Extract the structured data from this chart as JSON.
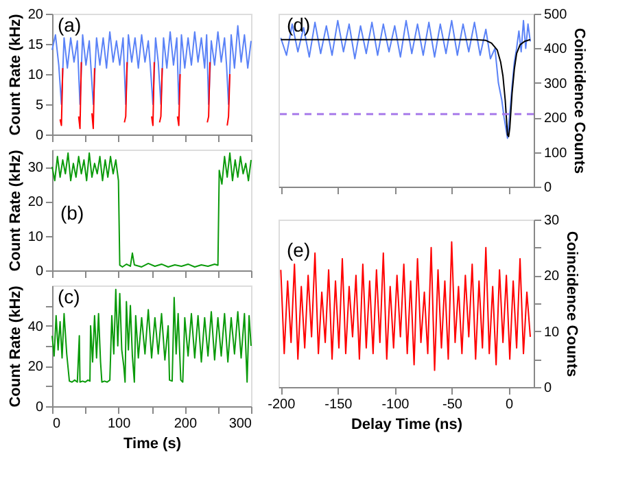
{
  "chart_data": [
    {
      "type": "line",
      "annotations": [
        "(a)"
      ],
      "ylabel": "Count Rate (kHz)",
      "tick_labels": "y",
      "xlim": [
        0,
        300
      ],
      "xticks": [
        0,
        {
          "value": 50,
          "label": null
        },
        100,
        {
          "value": 150,
          "label": null
        },
        200,
        {
          "value": 250,
          "label": null
        },
        300
      ],
      "ylim": [
        0,
        20
      ],
      "yticks": [
        0,
        5,
        10,
        15,
        20
      ],
      "series": [
        {
          "color": "#5a82f7",
          "x": [
            0,
            5,
            10,
            14,
            18,
            23,
            28,
            33,
            38,
            42,
            46,
            51,
            56,
            62,
            67,
            72,
            77,
            82,
            87,
            92,
            97,
            102,
            107,
            111,
            115,
            120,
            125,
            130,
            135,
            140,
            145,
            148,
            152,
            156,
            160,
            164,
            168,
            173,
            178,
            183,
            188,
            191,
            195,
            200,
            205,
            210,
            215,
            220,
            225,
            230,
            233,
            236,
            240,
            245,
            250,
            255,
            260,
            263,
            266,
            270,
            275,
            280,
            285,
            290,
            295,
            300
          ],
          "values": [
            14,
            16.5,
            11.5,
            5,
            16,
            11,
            16,
            12,
            15.5,
            5,
            16.5,
            11.5,
            15.5,
            5,
            16,
            11.5,
            16,
            11,
            17,
            12,
            15.5,
            11.5,
            16,
            5,
            16.5,
            12,
            16,
            11,
            16.5,
            12,
            15.5,
            11.5,
            5,
            16,
            12,
            5,
            16,
            11,
            17,
            11.5,
            16,
            5,
            16.5,
            11,
            16,
            11.5,
            17,
            12,
            16,
            11,
            16.5,
            5,
            15.5,
            11.5,
            17,
            12,
            16,
            11.5,
            5,
            16.5,
            11,
            18,
            12,
            16.5,
            11,
            15.5
          ]
        },
        {
          "color": "#ff0000",
          "x": [
            12,
            14,
            16,
            17,
            40,
            42,
            44,
            45,
            60,
            62,
            64,
            65,
            109,
            111,
            113,
            114,
            150,
            152,
            154,
            155,
            162,
            164,
            166,
            167,
            189,
            191,
            193,
            194,
            234,
            236,
            238,
            239,
            264,
            266,
            268
          ],
          "values": [
            2.5,
            1.5,
            11,
            null,
            3,
            1,
            12,
            null,
            3.5,
            1,
            11,
            null,
            2,
            3,
            12,
            null,
            3,
            1.5,
            12,
            null,
            2,
            3,
            11,
            null,
            3,
            1.5,
            10,
            null,
            2,
            3,
            12,
            null,
            1.5,
            3,
            10
          ]
        }
      ]
    },
    {
      "type": "line",
      "annotations": [
        "(b)"
      ],
      "ylabel": "Count Rate (kHz)",
      "tick_labels": "y",
      "xlim": [
        0,
        300
      ],
      "xticks": [
        0,
        {
          "value": 50,
          "label": null
        },
        100,
        {
          "value": 150,
          "label": null
        },
        200,
        {
          "value": 250,
          "label": null
        },
        300
      ],
      "ylim": [
        0,
        35
      ],
      "yticks": [
        0,
        10,
        20,
        30
      ],
      "series": [
        {
          "color": "#0a9a0a",
          "x": [
            0,
            4,
            8,
            12,
            16,
            20,
            24,
            28,
            32,
            36,
            40,
            44,
            48,
            52,
            56,
            60,
            64,
            68,
            72,
            76,
            80,
            84,
            88,
            92,
            96,
            100,
            102,
            106,
            112,
            118,
            121,
            124,
            135,
            145,
            155,
            165,
            175,
            185,
            195,
            205,
            215,
            225,
            235,
            245,
            250,
            252,
            256,
            260,
            264,
            268,
            272,
            276,
            280,
            284,
            288,
            292,
            296,
            300
          ],
          "values": [
            30,
            26,
            33,
            27,
            32,
            28,
            34,
            26,
            31,
            27,
            33,
            28,
            32,
            26,
            34,
            27,
            31,
            28,
            33,
            26,
            32,
            27,
            33,
            28,
            32,
            26,
            1.5,
            1,
            1.8,
            1.2,
            5,
            1.6,
            1,
            2,
            1.2,
            1.8,
            1,
            1.6,
            1.2,
            1.8,
            1,
            1.6,
            1.2,
            1.8,
            1.5,
            29,
            25,
            33,
            27,
            34,
            26,
            32,
            27,
            33,
            28,
            31,
            26,
            32
          ]
        }
      ]
    },
    {
      "type": "line",
      "annotations": [
        "(c)"
      ],
      "xlabel": "Time (s)",
      "ylabel": "Count Rate (kHz)",
      "xlim": [
        0,
        300
      ],
      "xticks": [
        0,
        {
          "value": 50,
          "label": null
        },
        100,
        {
          "value": 150,
          "label": null
        },
        200,
        {
          "value": 250,
          "label": null
        },
        300
      ],
      "ylim": [
        0,
        60
      ],
      "yticks": [
        0,
        {
          "value": 10,
          "label": null
        },
        20,
        {
          "value": 30,
          "label": null
        },
        40,
        {
          "value": 50,
          "label": null
        }
      ],
      "series": [
        {
          "color": "#0a9a0a",
          "x": [
            0,
            3,
            6,
            9,
            12,
            15,
            18,
            22,
            26,
            30,
            34,
            38,
            41,
            42,
            46,
            50,
            54,
            57,
            58,
            61,
            64,
            67,
            70,
            73,
            75,
            79,
            83,
            87,
            90,
            93,
            96,
            99,
            102,
            105,
            108,
            110,
            112,
            115,
            118,
            121,
            124,
            126,
            130,
            135,
            140,
            145,
            150,
            155,
            160,
            165,
            170,
            175,
            177,
            181,
            184,
            187,
            190,
            194,
            197,
            200,
            205,
            210,
            215,
            220,
            225,
            230,
            235,
            240,
            245,
            250,
            255,
            260,
            265,
            270,
            275,
            280,
            285,
            290,
            294,
            297,
            300
          ],
          "values": [
            35,
            25,
            45,
            28,
            42,
            24,
            46,
            26,
            12.5,
            12,
            13,
            12,
            35,
            12,
            12.5,
            12,
            13,
            12.5,
            40,
            22,
            45,
            24,
            46,
            22,
            12,
            12.5,
            12,
            13,
            45,
            26,
            58,
            30,
            56,
            28,
            20,
            12,
            52,
            28,
            50,
            25,
            12,
            45,
            24,
            44,
            26,
            48,
            24,
            44,
            26,
            46,
            23,
            40,
            13,
            12.5,
            54,
            26,
            46,
            13,
            12,
            44,
            25,
            46,
            24,
            45,
            22,
            44,
            25,
            47,
            23,
            44,
            25,
            46,
            22,
            44,
            26,
            47,
            24,
            46,
            12,
            45,
            30
          ]
        }
      ]
    },
    {
      "type": "line",
      "annotations": [
        "(d)"
      ],
      "y2label": "Coincidence Counts",
      "tick_labels": "y",
      "xlim": [
        -202,
        22
      ],
      "xticks": [
        -200,
        -150,
        -100,
        -50,
        0
      ],
      "y2lim": [
        0,
        500
      ],
      "y2ticks": [
        0,
        100,
        200,
        300,
        400,
        500
      ],
      "ref_lines": [
        {
          "axis": "y2",
          "value": 210,
          "color": "#a87bea",
          "line_style": "dashed"
        }
      ],
      "series": [
        {
          "color": "#5a82f7",
          "axis": "y2",
          "x": [
            -200,
            -195,
            -190,
            -185,
            -180,
            -175,
            -170,
            -165,
            -160,
            -155,
            -150,
            -145,
            -140,
            -135,
            -130,
            -125,
            -120,
            -115,
            -110,
            -105,
            -100,
            -95,
            -90,
            -85,
            -80,
            -75,
            -70,
            -65,
            -60,
            -55,
            -50,
            -45,
            -40,
            -35,
            -30,
            -25,
            -20,
            -16,
            -12,
            -9,
            -6,
            -4,
            -2,
            -1,
            0,
            1,
            3,
            5,
            7,
            9,
            11,
            13,
            15,
            17,
            19
          ],
          "values": [
            430,
            380,
            470,
            390,
            460,
            375,
            475,
            385,
            465,
            380,
            480,
            390,
            470,
            370,
            465,
            385,
            475,
            380,
            470,
            390,
            465,
            375,
            480,
            385,
            470,
            380,
            475,
            375,
            470,
            385,
            480,
            380,
            470,
            390,
            475,
            380,
            455,
            370,
            400,
            300,
            250,
            200,
            160,
            140,
            175,
            210,
            290,
            360,
            400,
            450,
            390,
            480,
            400,
            470,
            420
          ]
        },
        {
          "color": "#000000",
          "axis": "y2",
          "x": [
            -200,
            -30,
            -20,
            -15,
            -10,
            -7,
            -5,
            -3,
            -2,
            -1,
            0,
            1,
            2,
            3,
            5,
            7,
            10,
            14,
            19
          ],
          "values": [
            425,
            425,
            423,
            415,
            395,
            360,
            320,
            250,
            200,
            150,
            145,
            170,
            220,
            270,
            340,
            385,
            410,
            420,
            425
          ]
        }
      ]
    },
    {
      "type": "line",
      "annotations": [
        "(e)"
      ],
      "xlabel": "Delay Time (ns)",
      "y2label": "Coincidence Counts",
      "xlim": [
        -202,
        22
      ],
      "xticks": [
        -200,
        -150,
        -100,
        -50,
        0
      ],
      "y2lim": [
        0,
        30
      ],
      "y2ticks": [
        0,
        {
          "value": 5,
          "label": null
        },
        10,
        {
          "value": 15,
          "label": null
        },
        20,
        {
          "value": 25,
          "label": null
        },
        30
      ],
      "series": [
        {
          "color": "#ff0000",
          "axis": "y2",
          "x": [
            -200,
            -197,
            -194,
            -191,
            -188,
            -185,
            -182,
            -179,
            -176,
            -173,
            -170,
            -167,
            -164,
            -161,
            -158,
            -155,
            -152,
            -149,
            -146,
            -143,
            -140,
            -137,
            -134,
            -131,
            -128,
            -125,
            -122,
            -119,
            -116,
            -113,
            -110,
            -107,
            -104,
            -101,
            -98,
            -95,
            -92,
            -89,
            -86,
            -83,
            -80,
            -77,
            -74,
            -71,
            -68,
            -65,
            -62,
            -59,
            -56,
            -53,
            -50,
            -47,
            -44,
            -41,
            -38,
            -35,
            -32,
            -29,
            -26,
            -23,
            -20,
            -17,
            -14,
            -11,
            -8,
            -5,
            -2,
            1,
            4,
            7,
            10,
            13,
            16,
            19
          ],
          "values": [
            21,
            6,
            19,
            8,
            22,
            5,
            18,
            7,
            20,
            9,
            24,
            6,
            17,
            8,
            21,
            5,
            19,
            7,
            23,
            6,
            18,
            9,
            20,
            5,
            22,
            7,
            19,
            6,
            21,
            8,
            24,
            5,
            18,
            7,
            20,
            9,
            22,
            6,
            19,
            4,
            23,
            8,
            17,
            6,
            25,
            3,
            21,
            7,
            19,
            5,
            26,
            8,
            18,
            6,
            20,
            9,
            22,
            5,
            19,
            7,
            25,
            6,
            18,
            4,
            21,
            8,
            20,
            5,
            19,
            7,
            23,
            6,
            17,
            9
          ]
        }
      ]
    }
  ]
}
